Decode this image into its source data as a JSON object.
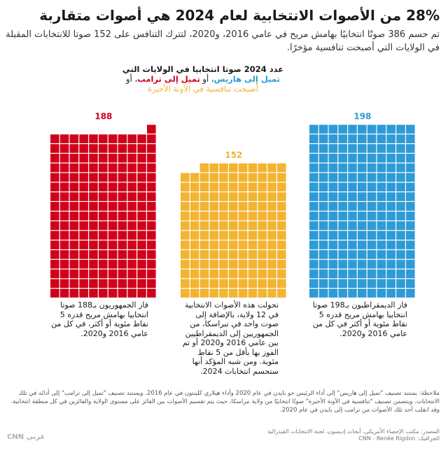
{
  "header": {
    "title": "28% من الأصوات الانتخابية لعام 2024 هي أصوات متقاربة",
    "subtitle": "تم حسم 386 صوتًا انتخابيًا بهامش مريح في عامي 2016، و2020، لتترك التنافس على 152 صوتا للانتخابات المقبلة في الولايات التي أصبحت تنافسية مؤخرًا."
  },
  "legend": {
    "line1": "عدد 2024 صوتا انتخابيا في الولايات التي",
    "blue_text": "تميل إلى هاريس",
    "sep1": "، أو ",
    "red_text": "تميل إلى ترامب",
    "sep2": "، أو",
    "yellow_text": "أصبحت تنافسية في الآونة الأخيرة"
  },
  "chart_data": {
    "type": "waffle",
    "title": "",
    "cell_unit": 1,
    "columns": 11,
    "series": [
      {
        "name": "تميل إلى ترامب",
        "value": 188,
        "color": "#d0021b"
      },
      {
        "name": "أصبحت تنافسية في الآونة الأخيرة",
        "value": 152,
        "color": "#f2b431"
      },
      {
        "name": "تميل إلى هاريس",
        "value": 198,
        "color": "#2e9bd6"
      }
    ]
  },
  "descriptions": {
    "red": "فاز الجمهوريون بـ188 صوتا انتخابيا بهامش مريح قدره 5 نقاط مئوية أو أكثر، في كل من عامي 2016 و2020.",
    "yellow": "تحولت هذه الأصوات الانتخابية في 12 ولاية، بالإضافة إلى صوت واحد في نبراسكا، من الجمهوريين إلى الديمقراطيين بين عامي 2016 و2020 أو تم الفوز بها بأقل من 5 نقاط مئوية. ومن شبه المؤكد أنها ستحسم انتخابات 2024.",
    "blue": "فاز الديمقراطيون بـ198 صوتا انتخابيا بهامش مريح قدره 5 نقاط مئوية أو أكثر في كل من عامي 2016 و2020."
  },
  "footer": {
    "note": "ملاحظة: يستند تصنيف \"تميل إلى هاريس\" إلى أداء الرئيس جو بايدن في عام 2020 وأداء هيلاري كلينتون في عام 2016. ويستند تصنيف \"تميل إلى ترامب\" إلى أدائه في تلك الانتخابات. ويتضمن تصنيف \"تنافسية في الآونة الأخيرة\" صوتًا انتخابيًا من ولاية نبراسكا، حيث يتم تقسيم الأصوات بين الفائز على مستوى الولاية والفائزين في كل منطقة انتخابية. وقد انقلب أحد تلك الأصوات من ترامب إلى بايدن في عام 2020.",
    "source_line1": "المصدر: مكتب الإحصاء الأمريكي، أبحاث إديسون، لجنة الانتخابات الفيدرالية",
    "source_line2": "الجرافيك: CNN - Renée Rigdon",
    "logo": "CNN عربي"
  }
}
